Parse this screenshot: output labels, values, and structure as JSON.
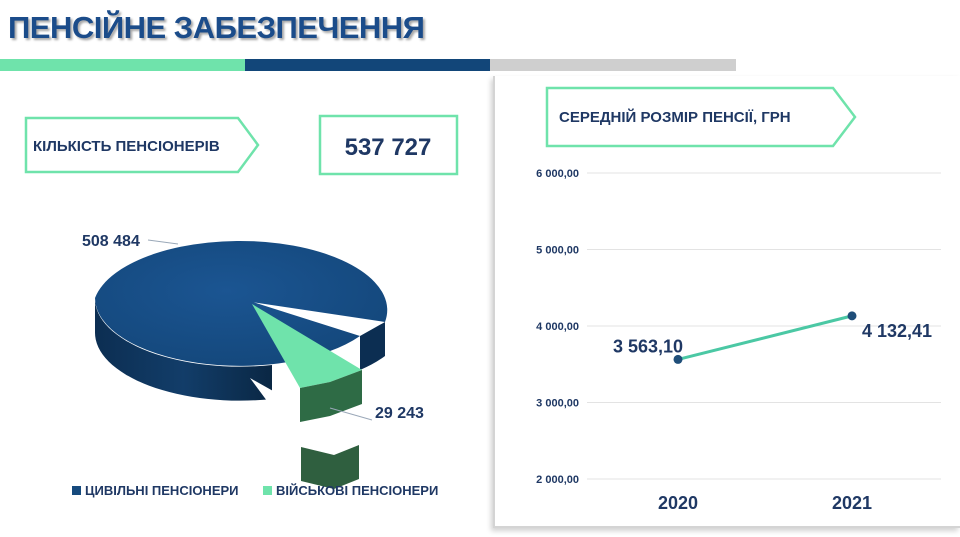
{
  "page": {
    "title": "ПЕНСІЙНЕ ЗАБЕЗПЕЧЕННЯ"
  },
  "colors": {
    "accent_green": "#6fe3ab",
    "accent_navy": "#124679",
    "accent_gray": "#cfcfcf",
    "text_navy": "#1f3864",
    "civil_slice": "#164a7d",
    "military_slice": "#6fe3ab",
    "line_color": "#4bc8a4"
  },
  "pensioners": {
    "badge_label": "КІЛЬКІСТЬ ПЕНСІОНЕРІВ",
    "total": "537 727"
  },
  "average_pension": {
    "badge_label": "СЕРЕДНІЙ РОЗМІР ПЕНСІЇ, ГРН"
  },
  "chart_data": [
    {
      "type": "pie",
      "style": "3d",
      "categories": [
        "ЦИВІЛЬНІ ПЕНСІОНЕРИ",
        "ВІЙСЬКОВІ ПЕНСІОНЕРИ"
      ],
      "values": [
        508484,
        29243
      ],
      "value_labels": [
        "508 484",
        "29 243"
      ],
      "legend_position": "bottom"
    },
    {
      "type": "line",
      "categories": [
        "2020",
        "2021"
      ],
      "series": [
        {
          "values": [
            3563.1,
            4132.41
          ],
          "value_labels": [
            "3 563,10",
            "4 132,41"
          ]
        }
      ],
      "ylim": [
        2000,
        6000
      ],
      "yticks": [
        6000,
        5000,
        4000,
        3000,
        2000
      ],
      "ytick_labels": [
        "6 000,00",
        "5 000,00",
        "4 000,00",
        "3 000,00",
        "2 000,00"
      ],
      "grid": true,
      "legend": false
    }
  ]
}
